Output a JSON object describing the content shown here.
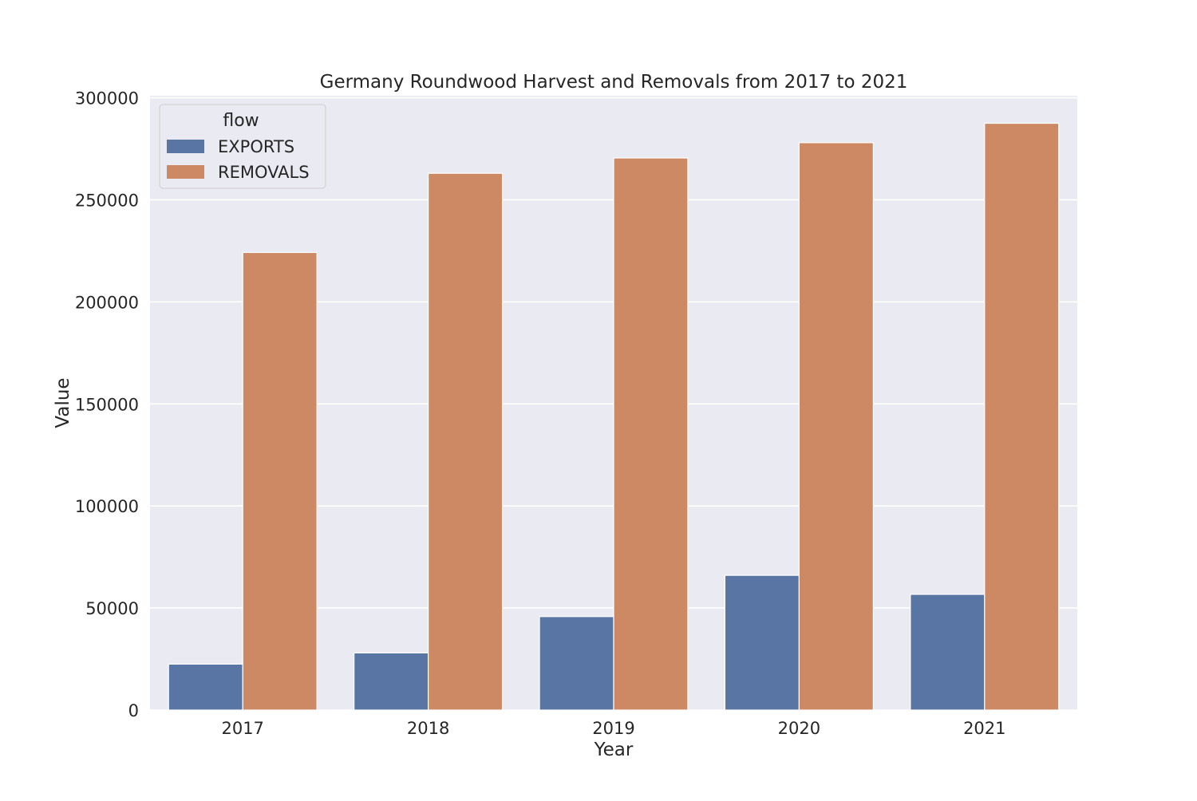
{
  "chart_data": {
    "type": "bar",
    "title": "Germany Roundwood Harvest and Removals from 2017 to 2021",
    "xlabel": "Year",
    "ylabel": "Value",
    "categories": [
      "2017",
      "2018",
      "2019",
      "2020",
      "2021"
    ],
    "series": [
      {
        "name": "EXPORTS",
        "color": "#5875a4",
        "values": [
          22500,
          28000,
          45800,
          66000,
          56700
        ]
      },
      {
        "name": "REMOVALS",
        "color": "#cc8963",
        "values": [
          224200,
          263000,
          270500,
          278000,
          287500
        ]
      }
    ],
    "ylim": [
      0,
      301000
    ],
    "yticks": [
      "0",
      "50000",
      "100000",
      "150000",
      "200000",
      "250000",
      "300000"
    ],
    "legend": {
      "title": "flow",
      "placement": "top-left"
    },
    "grid": true
  }
}
